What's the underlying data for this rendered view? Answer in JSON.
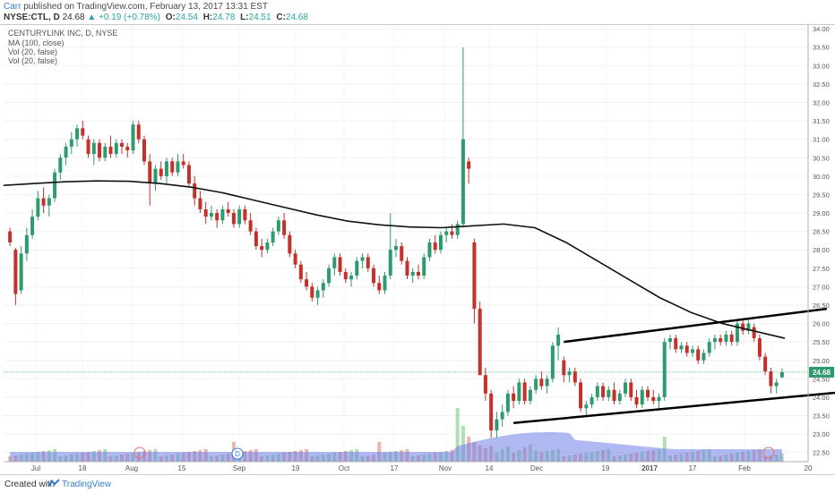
{
  "header": {
    "author": "Carr",
    "published_text": "published on TradingView.com, February 13, 2017 13:31 EST",
    "symbol": "NYSE:CTL, D",
    "last": "24.68",
    "change": "+0.19 (+0.78%)",
    "o_label": "O:",
    "o_value": "24.54",
    "h_label": "H:",
    "h_value": "24.78",
    "l_label": "L:",
    "l_value": "24.51",
    "c_label": "C:",
    "c_value": "24.68"
  },
  "legend": [
    "CENTURYLINK INC, D, NYSE",
    "MA (100, close)",
    "Vol (20, false)",
    "Vol (20, false)"
  ],
  "footer": {
    "created_text": "Created with",
    "brand": "TradingView"
  },
  "colors": {
    "up": "#2e9b6f",
    "down": "#c4302b",
    "volume_up": "#9fd6a0",
    "volume_down": "#e6a39c",
    "volume_ma": "#6f7fe6",
    "ma": "#111111",
    "price_tag": "#2e9b6f"
  },
  "chart_data": {
    "type": "candlestick",
    "title": "CENTURYLINK INC, D, NYSE",
    "x_ticks": [
      "Jul",
      "18",
      "Aug",
      "15",
      "Sep",
      "19",
      "Oct",
      "17",
      "Nov",
      "14",
      "Dec",
      "19",
      "2017",
      "17",
      "Feb",
      "20"
    ],
    "y_ticks": [
      "34.00",
      "33.50",
      "33.00",
      "32.50",
      "32.00",
      "31.50",
      "31.00",
      "30.50",
      "30.00",
      "29.50",
      "29.00",
      "28.50",
      "28.00",
      "27.50",
      "27.00",
      "26.50",
      "26.00",
      "25.50",
      "25.00",
      "24.50",
      "24.00",
      "23.50",
      "23.00",
      "22.50"
    ],
    "y_range": [
      22.25,
      34.1
    ],
    "last_price_tag": "24.68",
    "candles": [
      {
        "o": 28.5,
        "h": 28.6,
        "l": 28.1,
        "c": 28.2
      },
      {
        "o": 28.0,
        "h": 28.05,
        "l": 26.5,
        "c": 26.8
      },
      {
        "o": 26.9,
        "h": 28.1,
        "l": 26.8,
        "c": 27.9
      },
      {
        "o": 27.9,
        "h": 28.6,
        "l": 27.7,
        "c": 28.4
      },
      {
        "o": 28.4,
        "h": 29.1,
        "l": 28.3,
        "c": 28.9
      },
      {
        "o": 28.9,
        "h": 29.6,
        "l": 28.8,
        "c": 29.4
      },
      {
        "o": 29.4,
        "h": 29.7,
        "l": 29.0,
        "c": 29.2
      },
      {
        "o": 29.2,
        "h": 29.5,
        "l": 28.9,
        "c": 29.4
      },
      {
        "o": 29.4,
        "h": 30.2,
        "l": 29.3,
        "c": 30.1
      },
      {
        "o": 30.1,
        "h": 30.6,
        "l": 29.9,
        "c": 30.5
      },
      {
        "o": 30.5,
        "h": 30.9,
        "l": 30.3,
        "c": 30.8
      },
      {
        "o": 30.8,
        "h": 31.2,
        "l": 30.6,
        "c": 31.0
      },
      {
        "o": 31.0,
        "h": 31.4,
        "l": 30.8,
        "c": 31.3
      },
      {
        "o": 31.3,
        "h": 31.5,
        "l": 31.0,
        "c": 31.1
      },
      {
        "o": 31.0,
        "h": 31.1,
        "l": 30.5,
        "c": 30.6
      },
      {
        "o": 30.6,
        "h": 31.0,
        "l": 30.3,
        "c": 30.9
      },
      {
        "o": 30.9,
        "h": 31.0,
        "l": 30.4,
        "c": 30.5
      },
      {
        "o": 30.5,
        "h": 30.9,
        "l": 30.4,
        "c": 30.8
      },
      {
        "o": 30.8,
        "h": 31.1,
        "l": 30.5,
        "c": 30.6
      },
      {
        "o": 30.6,
        "h": 31.0,
        "l": 30.5,
        "c": 30.9
      },
      {
        "o": 30.9,
        "h": 31.0,
        "l": 30.6,
        "c": 30.8
      },
      {
        "o": 30.8,
        "h": 30.9,
        "l": 30.5,
        "c": 30.7
      },
      {
        "o": 30.7,
        "h": 31.5,
        "l": 30.6,
        "c": 31.4
      },
      {
        "o": 31.4,
        "h": 31.5,
        "l": 30.9,
        "c": 31.0
      },
      {
        "o": 31.0,
        "h": 31.1,
        "l": 30.3,
        "c": 30.4
      },
      {
        "o": 30.4,
        "h": 30.6,
        "l": 29.2,
        "c": 29.8
      },
      {
        "o": 29.8,
        "h": 30.3,
        "l": 29.6,
        "c": 30.2
      },
      {
        "o": 30.2,
        "h": 30.4,
        "l": 29.9,
        "c": 30.0
      },
      {
        "o": 30.0,
        "h": 30.5,
        "l": 29.8,
        "c": 30.4
      },
      {
        "o": 30.4,
        "h": 30.5,
        "l": 30.0,
        "c": 30.1
      },
      {
        "o": 30.1,
        "h": 30.6,
        "l": 30.0,
        "c": 30.4
      },
      {
        "o": 30.4,
        "h": 30.6,
        "l": 30.2,
        "c": 30.3
      },
      {
        "o": 30.3,
        "h": 30.4,
        "l": 29.7,
        "c": 29.8
      },
      {
        "o": 29.8,
        "h": 30.0,
        "l": 29.2,
        "c": 29.4
      },
      {
        "o": 29.4,
        "h": 29.6,
        "l": 29.0,
        "c": 29.1
      },
      {
        "o": 29.1,
        "h": 29.3,
        "l": 28.7,
        "c": 28.9
      },
      {
        "o": 28.9,
        "h": 29.2,
        "l": 28.8,
        "c": 29.0
      },
      {
        "o": 29.0,
        "h": 29.1,
        "l": 28.6,
        "c": 28.8
      },
      {
        "o": 28.8,
        "h": 29.2,
        "l": 28.7,
        "c": 29.1
      },
      {
        "o": 29.1,
        "h": 29.3,
        "l": 28.9,
        "c": 29.0
      },
      {
        "o": 29.0,
        "h": 29.1,
        "l": 28.6,
        "c": 28.7
      },
      {
        "o": 28.7,
        "h": 29.2,
        "l": 28.6,
        "c": 29.1
      },
      {
        "o": 29.1,
        "h": 29.2,
        "l": 28.7,
        "c": 28.8
      },
      {
        "o": 28.8,
        "h": 29.0,
        "l": 28.4,
        "c": 28.5
      },
      {
        "o": 28.5,
        "h": 28.6,
        "l": 28.0,
        "c": 28.1
      },
      {
        "o": 28.1,
        "h": 28.3,
        "l": 27.8,
        "c": 28.0
      },
      {
        "o": 28.0,
        "h": 28.3,
        "l": 27.9,
        "c": 28.2
      },
      {
        "o": 28.2,
        "h": 28.6,
        "l": 28.1,
        "c": 28.5
      },
      {
        "o": 28.5,
        "h": 28.9,
        "l": 28.4,
        "c": 28.8
      },
      {
        "o": 28.8,
        "h": 29.0,
        "l": 28.3,
        "c": 28.4
      },
      {
        "o": 28.4,
        "h": 28.5,
        "l": 27.8,
        "c": 27.9
      },
      {
        "o": 27.9,
        "h": 28.0,
        "l": 27.5,
        "c": 27.6
      },
      {
        "o": 27.6,
        "h": 27.7,
        "l": 27.1,
        "c": 27.2
      },
      {
        "o": 27.2,
        "h": 27.4,
        "l": 26.9,
        "c": 27.0
      },
      {
        "o": 27.0,
        "h": 27.1,
        "l": 26.6,
        "c": 26.7
      },
      {
        "o": 26.7,
        "h": 27.0,
        "l": 26.5,
        "c": 26.9
      },
      {
        "o": 26.9,
        "h": 27.2,
        "l": 26.7,
        "c": 27.1
      },
      {
        "o": 27.1,
        "h": 27.6,
        "l": 27.0,
        "c": 27.5
      },
      {
        "o": 27.5,
        "h": 27.9,
        "l": 27.3,
        "c": 27.8
      },
      {
        "o": 27.8,
        "h": 27.9,
        "l": 27.3,
        "c": 27.4
      },
      {
        "o": 27.4,
        "h": 27.5,
        "l": 27.1,
        "c": 27.2
      },
      {
        "o": 27.2,
        "h": 27.4,
        "l": 27.0,
        "c": 27.3
      },
      {
        "o": 27.3,
        "h": 27.8,
        "l": 27.2,
        "c": 27.7
      },
      {
        "o": 27.7,
        "h": 27.9,
        "l": 27.5,
        "c": 27.8
      },
      {
        "o": 27.8,
        "h": 27.9,
        "l": 27.4,
        "c": 27.5
      },
      {
        "o": 27.5,
        "h": 27.6,
        "l": 27.0,
        "c": 27.1
      },
      {
        "o": 27.1,
        "h": 27.3,
        "l": 26.8,
        "c": 26.9
      },
      {
        "o": 26.9,
        "h": 27.4,
        "l": 26.8,
        "c": 27.3
      },
      {
        "o": 27.3,
        "h": 29.0,
        "l": 27.2,
        "c": 28.0
      },
      {
        "o": 28.0,
        "h": 28.3,
        "l": 27.8,
        "c": 28.1
      },
      {
        "o": 28.1,
        "h": 28.2,
        "l": 27.6,
        "c": 27.7
      },
      {
        "o": 27.7,
        "h": 27.8,
        "l": 27.2,
        "c": 27.3
      },
      {
        "o": 27.3,
        "h": 27.5,
        "l": 27.1,
        "c": 27.4
      },
      {
        "o": 27.4,
        "h": 27.6,
        "l": 27.2,
        "c": 27.3
      },
      {
        "o": 27.3,
        "h": 27.9,
        "l": 27.2,
        "c": 27.8
      },
      {
        "o": 27.8,
        "h": 28.3,
        "l": 27.7,
        "c": 28.2
      },
      {
        "o": 28.2,
        "h": 28.4,
        "l": 27.9,
        "c": 28.0
      },
      {
        "o": 28.0,
        "h": 28.5,
        "l": 27.9,
        "c": 28.4
      },
      {
        "o": 28.4,
        "h": 28.6,
        "l": 28.2,
        "c": 28.5
      },
      {
        "o": 28.5,
        "h": 28.7,
        "l": 28.3,
        "c": 28.4
      },
      {
        "o": 28.4,
        "h": 28.8,
        "l": 28.3,
        "c": 28.7
      },
      {
        "o": 28.7,
        "h": 33.5,
        "l": 28.6,
        "c": 31.0
      },
      {
        "o": 30.4,
        "h": 30.5,
        "l": 29.8,
        "c": 30.2
      },
      {
        "o": 28.2,
        "h": 28.3,
        "l": 26.0,
        "c": 26.4
      },
      {
        "o": 26.4,
        "h": 26.6,
        "l": 24.6,
        "c": 24.6
      },
      {
        "o": 24.6,
        "h": 24.8,
        "l": 23.9,
        "c": 24.1
      },
      {
        "o": 24.1,
        "h": 24.2,
        "l": 22.9,
        "c": 23.1
      },
      {
        "o": 23.1,
        "h": 23.6,
        "l": 22.9,
        "c": 23.4
      },
      {
        "o": 23.4,
        "h": 23.8,
        "l": 23.2,
        "c": 23.6
      },
      {
        "o": 23.6,
        "h": 24.2,
        "l": 23.5,
        "c": 24.1
      },
      {
        "o": 24.1,
        "h": 24.3,
        "l": 23.7,
        "c": 23.9
      },
      {
        "o": 23.9,
        "h": 24.5,
        "l": 23.8,
        "c": 24.4
      },
      {
        "o": 24.4,
        "h": 24.5,
        "l": 23.8,
        "c": 23.9
      },
      {
        "o": 23.9,
        "h": 24.3,
        "l": 23.8,
        "c": 24.2
      },
      {
        "o": 24.2,
        "h": 24.6,
        "l": 24.1,
        "c": 24.5
      },
      {
        "o": 24.5,
        "h": 24.7,
        "l": 24.2,
        "c": 24.3
      },
      {
        "o": 24.3,
        "h": 24.6,
        "l": 24.1,
        "c": 24.5
      },
      {
        "o": 24.5,
        "h": 25.5,
        "l": 24.4,
        "c": 25.4
      },
      {
        "o": 25.4,
        "h": 25.9,
        "l": 25.0,
        "c": 25.7
      },
      {
        "o": 25.0,
        "h": 25.1,
        "l": 24.4,
        "c": 24.6
      },
      {
        "o": 24.6,
        "h": 24.8,
        "l": 24.4,
        "c": 24.7
      },
      {
        "o": 24.7,
        "h": 24.8,
        "l": 24.3,
        "c": 24.4
      },
      {
        "o": 24.4,
        "h": 24.5,
        "l": 23.6,
        "c": 23.7
      },
      {
        "o": 23.7,
        "h": 23.9,
        "l": 23.5,
        "c": 23.8
      },
      {
        "o": 23.8,
        "h": 24.1,
        "l": 23.7,
        "c": 24.0
      },
      {
        "o": 24.0,
        "h": 24.4,
        "l": 23.9,
        "c": 24.3
      },
      {
        "o": 24.3,
        "h": 24.4,
        "l": 23.9,
        "c": 24.0
      },
      {
        "o": 24.0,
        "h": 24.3,
        "l": 23.9,
        "c": 24.2
      },
      {
        "o": 24.2,
        "h": 24.4,
        "l": 23.8,
        "c": 23.9
      },
      {
        "o": 23.9,
        "h": 24.2,
        "l": 23.8,
        "c": 24.1
      },
      {
        "o": 24.1,
        "h": 24.5,
        "l": 24.0,
        "c": 24.4
      },
      {
        "o": 24.4,
        "h": 24.5,
        "l": 23.9,
        "c": 24.0
      },
      {
        "o": 24.0,
        "h": 24.2,
        "l": 23.7,
        "c": 23.8
      },
      {
        "o": 23.8,
        "h": 24.3,
        "l": 23.7,
        "c": 24.2
      },
      {
        "o": 24.2,
        "h": 24.3,
        "l": 23.9,
        "c": 24.0
      },
      {
        "o": 24.0,
        "h": 24.2,
        "l": 23.8,
        "c": 23.9
      },
      {
        "o": 23.9,
        "h": 24.1,
        "l": 23.7,
        "c": 24.0
      },
      {
        "o": 24.0,
        "h": 25.6,
        "l": 23.9,
        "c": 25.5
      },
      {
        "o": 25.5,
        "h": 25.7,
        "l": 25.3,
        "c": 25.6
      },
      {
        "o": 25.6,
        "h": 25.7,
        "l": 25.2,
        "c": 25.3
      },
      {
        "o": 25.3,
        "h": 25.5,
        "l": 25.2,
        "c": 25.4
      },
      {
        "o": 25.4,
        "h": 25.5,
        "l": 25.1,
        "c": 25.2
      },
      {
        "o": 25.2,
        "h": 25.4,
        "l": 25.1,
        "c": 25.3
      },
      {
        "o": 25.3,
        "h": 25.4,
        "l": 24.9,
        "c": 25.0
      },
      {
        "o": 25.0,
        "h": 25.3,
        "l": 24.9,
        "c": 25.2
      },
      {
        "o": 25.2,
        "h": 25.6,
        "l": 25.1,
        "c": 25.5
      },
      {
        "o": 25.5,
        "h": 25.7,
        "l": 25.3,
        "c": 25.6
      },
      {
        "o": 25.6,
        "h": 25.7,
        "l": 25.4,
        "c": 25.5
      },
      {
        "o": 25.5,
        "h": 25.8,
        "l": 25.4,
        "c": 25.7
      },
      {
        "o": 25.7,
        "h": 25.8,
        "l": 25.4,
        "c": 25.5
      },
      {
        "o": 25.5,
        "h": 26.1,
        "l": 25.4,
        "c": 26.0
      },
      {
        "o": 26.0,
        "h": 26.1,
        "l": 25.7,
        "c": 25.8
      },
      {
        "o": 25.8,
        "h": 26.1,
        "l": 25.7,
        "c": 26.0
      },
      {
        "o": 25.9,
        "h": 26.0,
        "l": 25.5,
        "c": 25.6
      },
      {
        "o": 25.6,
        "h": 25.7,
        "l": 25.0,
        "c": 25.1
      },
      {
        "o": 25.1,
        "h": 25.2,
        "l": 24.6,
        "c": 24.7
      },
      {
        "o": 24.7,
        "h": 24.8,
        "l": 24.1,
        "c": 24.3
      },
      {
        "o": 24.3,
        "h": 24.5,
        "l": 24.1,
        "c": 24.4
      },
      {
        "o": 24.54,
        "h": 24.78,
        "l": 24.51,
        "c": 24.68
      }
    ],
    "ma100": [
      29.75,
      29.8,
      29.85,
      29.87,
      29.86,
      29.8,
      29.7,
      29.55,
      29.35,
      29.15,
      28.95,
      28.78,
      28.68,
      28.62,
      28.6,
      28.65,
      28.7,
      28.6,
      28.2,
      27.7,
      27.2,
      26.7,
      26.3,
      26.0,
      25.8,
      25.6
    ],
    "trendlines": [
      {
        "name": "upper channel",
        "from": [
          99,
          25.5
        ],
        "to": [
          146,
          26.4
        ]
      },
      {
        "name": "lower channel",
        "from": [
          90,
          23.3
        ],
        "to": [
          153,
          24.2
        ]
      }
    ],
    "volume_note": "volume histogram with moving-average area at bottom of pane"
  }
}
